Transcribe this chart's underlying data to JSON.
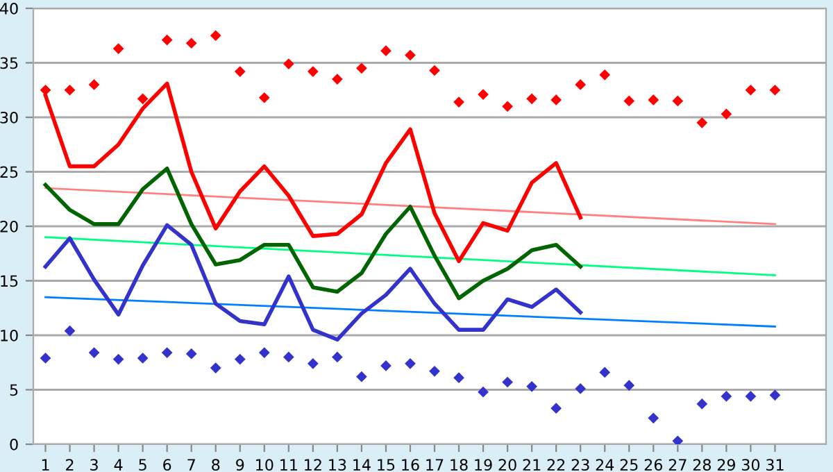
{
  "chart_data": {
    "type": "line",
    "xlim": [
      0.5,
      33.1
    ],
    "xticks": [
      1,
      2,
      3,
      4,
      5,
      6,
      7,
      8,
      9,
      10,
      11,
      12,
      13,
      14,
      15,
      16,
      17,
      18,
      19,
      20,
      21,
      22,
      23,
      24,
      25,
      26,
      27,
      28,
      29,
      30,
      31
    ],
    "ylim": [
      0,
      40
    ],
    "yticks": [
      0,
      5,
      10,
      15,
      20,
      25,
      30,
      35,
      40
    ],
    "grid": "y",
    "legend": false,
    "series": [
      {
        "type": "scatter",
        "marker": "diamond",
        "color": "#ff0000",
        "x": [
          1,
          2,
          3,
          4,
          5,
          6,
          7,
          8,
          9,
          10,
          11,
          12,
          13,
          14,
          15,
          16,
          17,
          18,
          19,
          20,
          21,
          22,
          23,
          24,
          25,
          26,
          27,
          28,
          29,
          30,
          31
        ],
        "values": [
          32.5,
          32.5,
          33.0,
          36.3,
          31.7,
          37.1,
          36.8,
          37.5,
          34.2,
          31.8,
          34.9,
          34.2,
          33.5,
          34.5,
          36.1,
          35.7,
          34.3,
          31.4,
          32.1,
          31.0,
          31.7,
          31.6,
          33.0,
          33.9,
          31.5,
          31.6,
          31.5,
          29.5,
          30.3,
          32.5,
          32.5
        ]
      },
      {
        "type": "scatter",
        "marker": "diamond",
        "color": "#3333cc",
        "x": [
          1,
          2,
          3,
          4,
          5,
          6,
          7,
          8,
          9,
          10,
          11,
          12,
          13,
          14,
          15,
          16,
          17,
          18,
          19,
          20,
          21,
          22,
          23,
          24,
          25,
          26,
          27,
          28,
          29,
          30,
          31
        ],
        "values": [
          7.9,
          10.4,
          8.4,
          7.8,
          7.9,
          8.4,
          8.3,
          7.0,
          7.8,
          8.4,
          8.0,
          7.4,
          8.0,
          6.2,
          7.2,
          7.4,
          6.7,
          6.1,
          4.8,
          5.7,
          5.3,
          3.3,
          5.1,
          6.6,
          5.4,
          2.4,
          0.3,
          3.7,
          4.4,
          4.4,
          4.5
        ]
      },
      {
        "color": "#ff8080",
        "x": [
          1,
          31
        ],
        "values": [
          23.5,
          20.2
        ]
      },
      {
        "color": "#00ff80",
        "x": [
          1,
          31
        ],
        "values": [
          19.0,
          15.5
        ]
      },
      {
        "color": "#0080ff",
        "x": [
          1,
          31
        ],
        "values": [
          13.5,
          10.8
        ]
      },
      {
        "color": "#ff0000",
        "x": [
          1,
          2,
          3,
          4,
          5,
          6,
          7,
          8,
          9,
          10,
          11,
          12,
          13,
          14,
          15,
          16,
          17,
          18,
          19,
          20,
          21,
          22,
          23
        ],
        "values": [
          32.0,
          25.5,
          25.5,
          27.5,
          30.8,
          33.1,
          25.0,
          19.8,
          23.2,
          25.5,
          22.8,
          19.1,
          19.3,
          21.1,
          25.8,
          28.9,
          21.2,
          16.8,
          20.3,
          19.6,
          24.0,
          25.8,
          20.8
        ]
      },
      {
        "color": "#006400",
        "x": [
          1,
          2,
          3,
          4,
          5,
          6,
          7,
          8,
          9,
          10,
          11,
          12,
          13,
          14,
          15,
          16,
          17,
          18,
          19,
          20,
          21,
          22,
          23
        ],
        "values": [
          23.8,
          21.5,
          20.2,
          20.2,
          23.4,
          25.3,
          20.2,
          16.5,
          16.9,
          18.3,
          18.3,
          14.4,
          14.0,
          15.7,
          19.3,
          21.8,
          17.3,
          13.4,
          15.0,
          16.1,
          17.8,
          18.3,
          16.3
        ]
      },
      {
        "color": "#3333cc",
        "x": [
          1,
          2,
          3,
          4,
          5,
          6,
          7,
          8,
          9,
          10,
          11,
          12,
          13,
          14,
          15,
          16,
          17,
          18,
          19,
          20,
          21,
          22,
          23
        ],
        "values": [
          16.3,
          18.9,
          15.1,
          11.9,
          16.4,
          20.1,
          18.3,
          12.9,
          11.3,
          11.0,
          15.4,
          10.5,
          9.6,
          12.0,
          13.7,
          16.1,
          12.9,
          10.5,
          10.5,
          13.3,
          12.6,
          14.2,
          12.1
        ]
      }
    ]
  }
}
